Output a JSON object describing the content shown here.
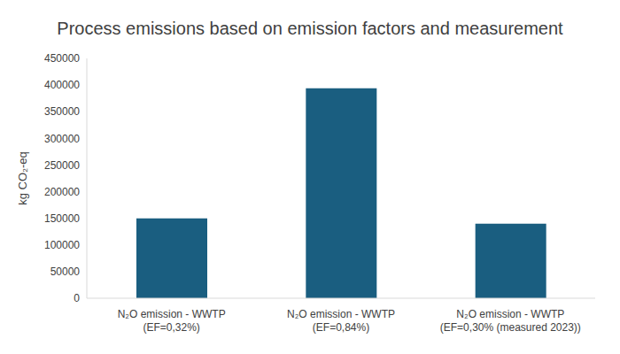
{
  "chart_data": {
    "type": "bar",
    "title": "Process emissions based on emission factors and measurement",
    "y_label": "kg CO₂-eq",
    "categories": [
      "N₂O emission - WWTP (EF=0,32%)",
      "N₂O emission - WWTP (EF=0,84%)",
      "N₂O emission - WWTP (EF=0,30% (measured 2023))"
    ],
    "values": [
      150000,
      394000,
      140000
    ],
    "color": "#1a5e80",
    "ylim": [
      0,
      450000
    ],
    "yticks": [
      0,
      50000,
      100000,
      150000,
      200000,
      250000,
      300000,
      350000,
      400000,
      450000
    ],
    "grid": false
  }
}
